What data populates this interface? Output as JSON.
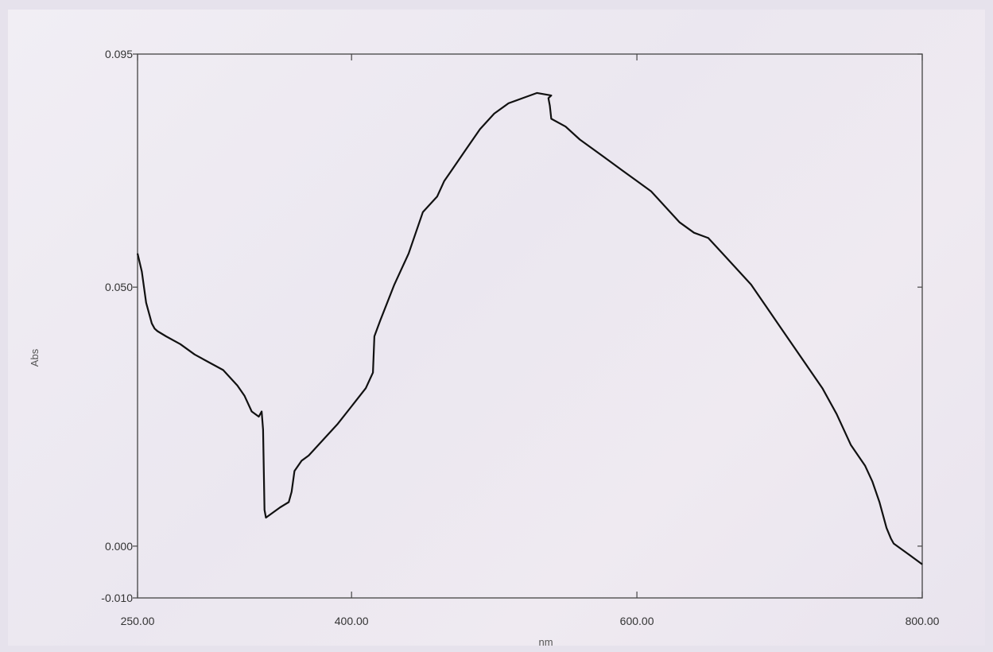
{
  "chart_data": {
    "type": "line",
    "xlabel": "nm",
    "ylabel": "Abs",
    "xlim": [
      250,
      800
    ],
    "ylim": [
      -0.01,
      0.095
    ],
    "x_ticks": [
      {
        "value": 250,
        "label": "250.00"
      },
      {
        "value": 400,
        "label": "400.00"
      },
      {
        "value": 600,
        "label": "600.00"
      },
      {
        "value": 800,
        "label": "800.00"
      }
    ],
    "y_ticks": [
      {
        "value": 0.095,
        "label": "0.095"
      },
      {
        "value": 0.05,
        "label": "0.050"
      },
      {
        "value": 0.0,
        "label": "0.000"
      },
      {
        "value": -0.01,
        "label": "-0.010"
      }
    ],
    "grid": false,
    "colors": {
      "line": "#111111",
      "frame": "#444444"
    },
    "series": [
      {
        "x": [
          250,
          253,
          256,
          260,
          262,
          264,
          270,
          280,
          290,
          300,
          310,
          320,
          325,
          330,
          335,
          337,
          338,
          339,
          340,
          345,
          350,
          356,
          358,
          360,
          365,
          370,
          380,
          390,
          400,
          410,
          415,
          416,
          420,
          430,
          440,
          450,
          460,
          465,
          470,
          480,
          490,
          500,
          510,
          520,
          530,
          540,
          538,
          539,
          540,
          550,
          560,
          570,
          580,
          590,
          600,
          610,
          620,
          630,
          640,
          650,
          660,
          670,
          680,
          690,
          700,
          710,
          720,
          730,
          740,
          750,
          760,
          765,
          770,
          775,
          778,
          780,
          785,
          790,
          795,
          800
        ],
        "y": [
          0.0565,
          0.053,
          0.047,
          0.043,
          0.042,
          0.0415,
          0.0405,
          0.039,
          0.037,
          0.0355,
          0.034,
          0.031,
          0.029,
          0.026,
          0.025,
          0.026,
          0.0225,
          0.007,
          0.0055,
          0.0065,
          0.0075,
          0.0085,
          0.0105,
          0.0145,
          0.0165,
          0.0175,
          0.0205,
          0.0235,
          0.027,
          0.0305,
          0.0335,
          0.0405,
          0.0435,
          0.0505,
          0.0565,
          0.0645,
          0.0675,
          0.0705,
          0.0725,
          0.0765,
          0.0805,
          0.0835,
          0.0855,
          0.0865,
          0.0875,
          0.087,
          0.0865,
          0.085,
          0.0825,
          0.081,
          0.0785,
          0.0765,
          0.0745,
          0.0725,
          0.0705,
          0.0685,
          0.0655,
          0.0625,
          0.0605,
          0.0595,
          0.0565,
          0.0535,
          0.0505,
          0.0465,
          0.0425,
          0.0385,
          0.0345,
          0.0305,
          0.0255,
          0.0195,
          0.0155,
          0.0125,
          0.0085,
          0.0035,
          0.0015,
          0.0005,
          -0.0005,
          -0.0015,
          -0.0025,
          -0.0035
        ]
      }
    ]
  }
}
